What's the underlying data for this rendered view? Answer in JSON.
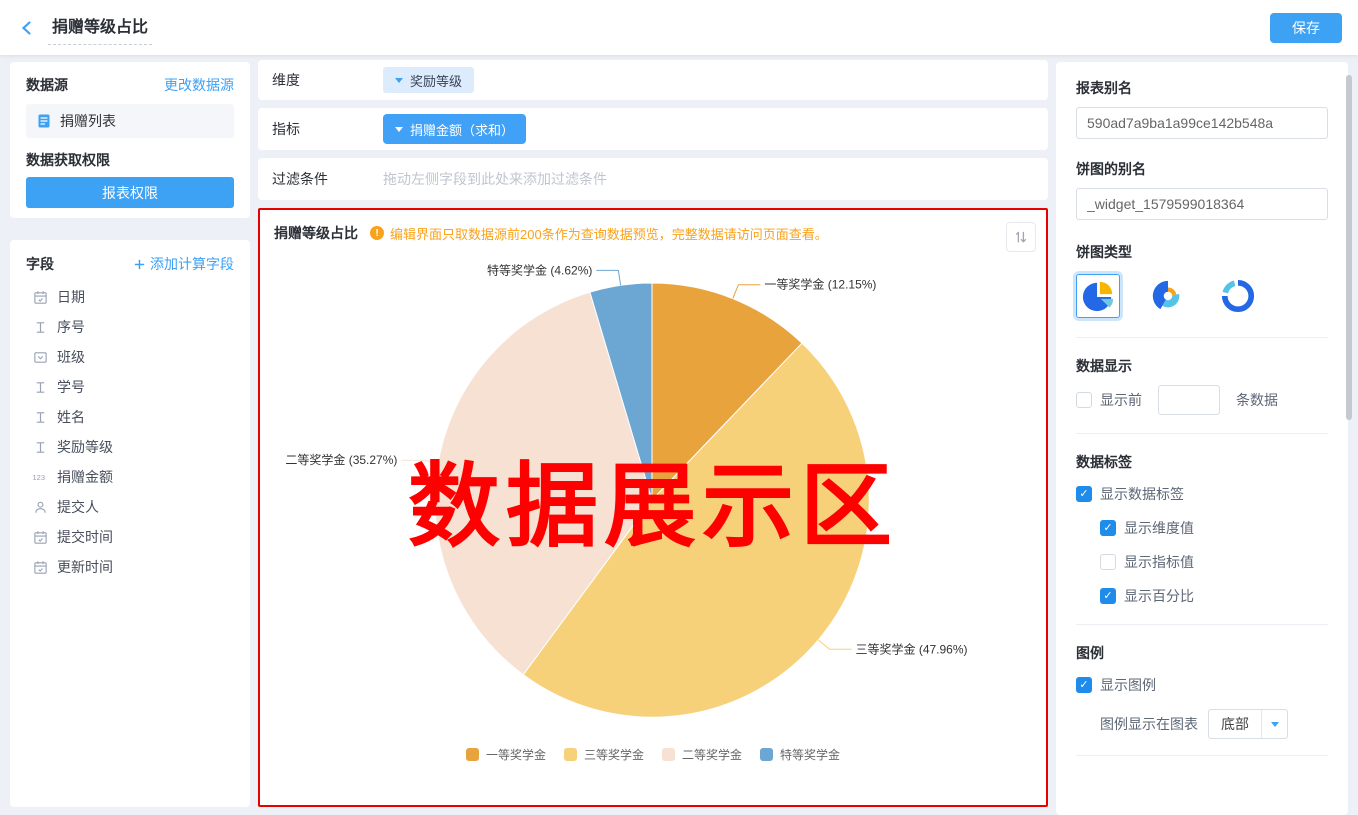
{
  "header": {
    "title": "捐赠等级占比",
    "save_label": "保存"
  },
  "left": {
    "datasource_title": "数据源",
    "change_link": "更改数据源",
    "datasource_item": "捐赠列表",
    "permission_title": "数据获取权限",
    "permission_button": "报表权限",
    "fields_title": "字段",
    "add_calc_label": "添加计算字段",
    "fields": [
      {
        "icon": "calendar",
        "label": "日期"
      },
      {
        "icon": "text",
        "label": "序号"
      },
      {
        "icon": "select",
        "label": "班级"
      },
      {
        "icon": "text",
        "label": "学号"
      },
      {
        "icon": "text",
        "label": "姓名"
      },
      {
        "icon": "text",
        "label": "奖励等级"
      },
      {
        "icon": "number",
        "label": "捐赠金额"
      },
      {
        "icon": "person",
        "label": "提交人"
      },
      {
        "icon": "calendar",
        "label": "提交时间"
      },
      {
        "icon": "calendar",
        "label": "更新时间"
      }
    ]
  },
  "config": {
    "dimension_label": "维度",
    "dimension_tag": "奖励等级",
    "metric_label": "指标",
    "metric_tag": "捐赠金额（求和）",
    "filter_label": "过滤条件",
    "filter_placeholder": "拖动左侧字段到此处来添加过滤条件"
  },
  "chart_panel": {
    "title": "捐赠等级占比",
    "warning": "编辑界面只取数据源前200条作为查询数据预览，完整数据请访问页面查看。",
    "watermark": "数据展示区"
  },
  "chart_data": {
    "type": "pie",
    "title": "捐赠等级占比",
    "start_angle": "top",
    "direction": "clockwise",
    "label_format": "{name} ({percent}%)",
    "legend_position": "bottom",
    "series": [
      {
        "name": "一等奖学金",
        "percent": 12.15,
        "color": "#e8a33d"
      },
      {
        "name": "三等奖学金",
        "percent": 47.96,
        "color": "#f7d07a"
      },
      {
        "name": "二等奖学金",
        "percent": 35.27,
        "color": "#f6e1d2"
      },
      {
        "name": "特等奖学金",
        "percent": 4.62,
        "color": "#6ca7d4"
      }
    ],
    "legend": [
      "一等奖学金",
      "三等奖学金",
      "二等奖学金",
      "特等奖学金"
    ]
  },
  "right": {
    "report_alias_label": "报表别名",
    "report_alias_value": "590ad7a9ba1a99ce142b548a",
    "pie_alias_label": "饼图的别名",
    "pie_alias_value": "_widget_1579599018364",
    "pie_type_label": "饼图类型",
    "data_display_label": "数据显示",
    "show_top_label": "显示前",
    "show_top_suffix": "条数据",
    "show_top_checked": false,
    "show_top_value": "",
    "data_label_title": "数据标签",
    "show_data_label": "显示数据标签",
    "show_data_label_checked": true,
    "show_dimension": "显示维度值",
    "show_dimension_checked": true,
    "show_metric": "显示指标值",
    "show_metric_checked": false,
    "show_percent": "显示百分比",
    "show_percent_checked": true,
    "legend_title": "图例",
    "show_legend": "显示图例",
    "show_legend_checked": true,
    "legend_pos_label": "图例显示在图表",
    "legend_pos_value": "底部"
  },
  "colors": {
    "accent_blue": "#3da1f4",
    "warning_orange": "#f9a21b",
    "highlight_red": "#e60000",
    "watermark_red": "#ff0000"
  }
}
